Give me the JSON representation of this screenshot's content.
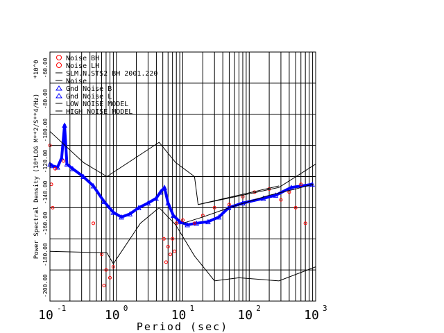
{
  "chart_data": {
    "type": "scatter",
    "title": "",
    "xlabel": "Period (sec)",
    "ylabel": "Power Spectral Density (10*LOG M**2/S**4/Hz)",
    "y_multiplier": "*10^0",
    "xscale": "log",
    "xlim": [
      0.1,
      1000
    ],
    "ylim": [
      -200,
      -40
    ],
    "grid": true,
    "x_ticks": [
      {
        "base": "10",
        "exp": "-1",
        "v": 0.1
      },
      {
        "base": "10",
        "exp": "0",
        "v": 1
      },
      {
        "base": "10",
        "exp": "1",
        "v": 10
      },
      {
        "base": "10",
        "exp": "2",
        "v": 100
      },
      {
        "base": "10",
        "exp": "3",
        "v": 1000
      }
    ],
    "y_ticks": [
      {
        "label": "-200.00",
        "v": -200
      },
      {
        "label": "-180.00",
        "v": -180
      },
      {
        "label": "-160.00",
        "v": -160
      },
      {
        "label": "-140.00",
        "v": -140
      },
      {
        "label": "-120.00",
        "v": -120
      },
      {
        "label": "-100.00",
        "v": -100
      },
      {
        "label": "-80.00",
        "v": -80
      },
      {
        "label": "-60.00",
        "v": -60
      }
    ],
    "legend_position": "top-left",
    "legend": [
      {
        "label": "Noise BH",
        "symbol": "circle",
        "color": "#ff0000"
      },
      {
        "label": "Noise LH",
        "symbol": "circle",
        "color": "#ff0000"
      },
      {
        "label": "SLM.N.STS2 BH  2001.220",
        "symbol": "line",
        "color": "#000000"
      },
      {
        "label": "Noise",
        "symbol": "line",
        "color": "#000000"
      },
      {
        "label": "Gnd Noise B",
        "symbol": "triangle",
        "color": "#0000ff"
      },
      {
        "label": "Gnd Noise L",
        "symbol": "triangle",
        "color": "#0000ff"
      },
      {
        "label": "LOW NOISE MODEL",
        "symbol": "line",
        "color": "#000000"
      },
      {
        "label": "HIGH NOISE MODEL",
        "symbol": "line",
        "color": "#000000"
      }
    ],
    "series": [
      {
        "name": "Gnd Noise B",
        "color": "#0000ff",
        "points": [
          [
            0.1,
            -112
          ],
          [
            0.107,
            -113
          ],
          [
            0.13,
            -114
          ],
          [
            0.15,
            -108
          ],
          [
            0.166,
            -87
          ],
          [
            0.18,
            -112
          ],
          [
            0.22,
            -115
          ],
          [
            0.317,
            -120
          ],
          [
            0.45,
            -126
          ],
          [
            0.65,
            -136
          ],
          [
            0.9,
            -143
          ],
          [
            1.19,
            -146
          ],
          [
            1.6,
            -144
          ],
          [
            2.17,
            -140
          ],
          [
            3.0,
            -137
          ],
          [
            3.97,
            -134
          ],
          [
            4.6,
            -130
          ],
          [
            5.3,
            -127
          ],
          [
            6.0,
            -137
          ],
          [
            7.2,
            -145
          ],
          [
            9,
            -149
          ],
          [
            11.7,
            -151
          ],
          [
            16,
            -150
          ],
          [
            24,
            -149
          ],
          [
            35,
            -146
          ],
          [
            49,
            -140
          ],
          [
            80,
            -137
          ],
          [
            163,
            -134
          ],
          [
            250,
            -132
          ],
          [
            430,
            -127
          ],
          [
            890,
            -125
          ]
        ]
      },
      {
        "name": "Noise BH",
        "color": "#ff0000",
        "points": [
          [
            0.1,
            -100
          ],
          [
            0.105,
            -125
          ],
          [
            0.11,
            -140
          ],
          [
            0.12,
            -115
          ],
          [
            0.16,
            -110
          ],
          [
            0.45,
            -150
          ],
          [
            0.6,
            -170
          ],
          [
            0.65,
            -190
          ],
          [
            0.7,
            -180
          ],
          [
            0.8,
            -185
          ],
          [
            0.9,
            -178
          ],
          [
            5.2,
            -160
          ],
          [
            5.6,
            -175
          ],
          [
            6,
            -165
          ],
          [
            6.5,
            -170
          ],
          [
            7,
            -160
          ],
          [
            7.5,
            -168
          ],
          [
            8,
            -150
          ],
          [
            10,
            -148
          ],
          [
            15,
            -150
          ],
          [
            20,
            -145
          ],
          [
            30,
            -140
          ],
          [
            50,
            -138
          ],
          [
            80,
            -133
          ],
          [
            120,
            -130
          ],
          [
            200,
            -128
          ],
          [
            300,
            -135
          ],
          [
            400,
            -130
          ],
          [
            500,
            -140
          ],
          [
            600,
            -125
          ],
          [
            700,
            -150
          ]
        ]
      },
      {
        "name": "SLM.N.STS2 BH 2001.220",
        "color": "#000000",
        "points": [
          [
            17,
            -138
          ],
          [
            280,
            -126
          ]
        ]
      },
      {
        "name": "Noise",
        "color": "#000000",
        "points": [
          [
            10,
            -150
          ],
          [
            20,
            -146
          ],
          [
            50,
            -140
          ],
          [
            100,
            -136
          ],
          [
            200,
            -132
          ],
          [
            500,
            -128
          ],
          [
            900,
            -125
          ]
        ]
      },
      {
        "name": "HIGH NOISE MODEL",
        "color": "#000000",
        "points": [
          [
            0.1,
            -91
          ],
          [
            0.32,
            -111
          ],
          [
            0.72,
            -120
          ],
          [
            4.4,
            -98
          ],
          [
            7.8,
            -111
          ],
          [
            15,
            -120
          ],
          [
            17,
            -138
          ],
          [
            280,
            -127
          ],
          [
            1000,
            -112
          ]
        ]
      },
      {
        "name": "LOW NOISE MODEL",
        "color": "#000000",
        "points": [
          [
            0.1,
            -168
          ],
          [
            0.72,
            -169
          ],
          [
            0.9,
            -176
          ],
          [
            2.3,
            -150
          ],
          [
            4.4,
            -140
          ],
          [
            7.8,
            -151
          ],
          [
            15,
            -171
          ],
          [
            30,
            -187
          ],
          [
            70,
            -185
          ],
          [
            280,
            -187
          ],
          [
            1000,
            -178
          ]
        ]
      }
    ]
  }
}
